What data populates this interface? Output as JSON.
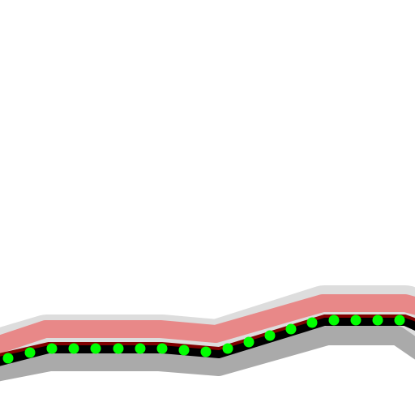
{
  "map": {
    "background_color": "#ffffff",
    "feature": "road-route-with-dotted-overlay",
    "layers": [
      {
        "name": "road-casing-outer",
        "color": "#dddddd"
      },
      {
        "name": "road-shadow-lower",
        "color": "#aaaaaa"
      },
      {
        "name": "road-highlight-upper",
        "color": "#e88888"
      },
      {
        "name": "road-core",
        "color": "#000000"
      },
      {
        "name": "road-center-tint",
        "color": "#800000"
      },
      {
        "name": "route-dots",
        "color": "#00ff00"
      }
    ]
  }
}
